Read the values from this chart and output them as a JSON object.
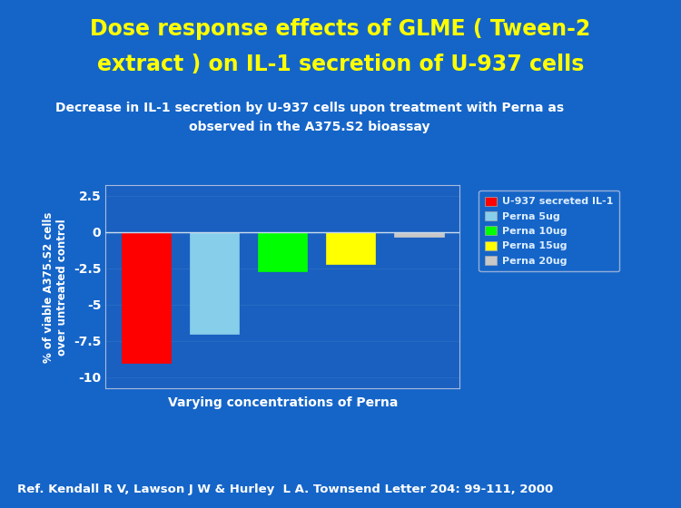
{
  "title_line1": "Dose response effects of GLME ( Tween-2",
  "title_line2": "extract ) on IL-1 secretion of U-937 cells",
  "subtitle_line1": "Decrease in IL-1 secretion by U-937 cells upon treatment with Perna as",
  "subtitle_line2": "observed in the A375.S2 bioassay",
  "xlabel": "Varying concentrations of Perna",
  "ylabel": "% of viable A375.S2 cells\nover untreated control",
  "reference": "Ref. Kendall R V, Lawson J W & Hurley  L A. Townsend Letter 204: 99-111, 2000",
  "categories": [
    "U-937 secreted IL-1",
    "Perna 5ug",
    "Perna 10ug",
    "Perna 15ug",
    "Perna 20ug"
  ],
  "values": [
    -9.0,
    -7.0,
    -2.7,
    -2.2,
    -0.35
  ],
  "bar_colors": [
    "#ff0000",
    "#87ceeb",
    "#00ff00",
    "#ffff00",
    "#c8c8c8"
  ],
  "ylim": [
    -10.8,
    3.2
  ],
  "yticks": [
    2.5,
    0,
    -2.5,
    -5,
    -7.5,
    -10
  ],
  "bg_color": "#1565c8",
  "plot_bg_color": "#1a60c0",
  "title_color": "#ffff00",
  "subtitle_color": "#ffffff",
  "axis_text_color": "#ffffff",
  "ref_color": "#ffffff",
  "title_fontsize": 17,
  "subtitle_fontsize": 10,
  "axis_fontsize": 10,
  "xlabel_fontsize": 10,
  "ylabel_fontsize": 8.5,
  "ref_fontsize": 9.5,
  "legend_fontsize": 8,
  "legend_text_color": "#ddeeff"
}
